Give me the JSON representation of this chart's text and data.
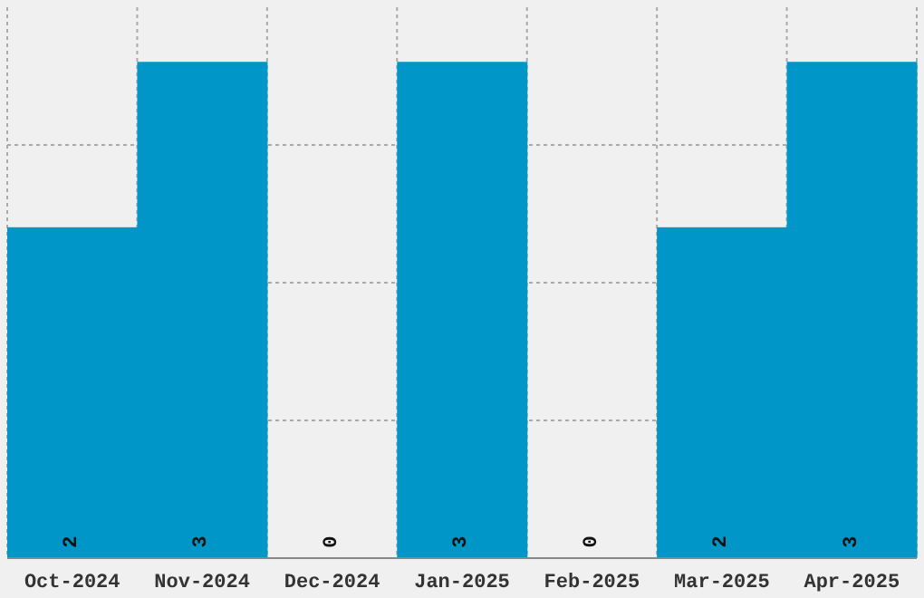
{
  "chart_data": {
    "type": "bar",
    "categories": [
      "Oct-2024",
      "Nov-2024",
      "Dec-2024",
      "Jan-2025",
      "Feb-2025",
      "Mar-2025",
      "Apr-2025"
    ],
    "values": [
      2,
      3,
      0,
      3,
      0,
      2,
      3
    ],
    "color": "#0096c8",
    "data_labels": true,
    "grid": true,
    "tick_labels": "x",
    "ylim": [
      0,
      3.33
    ]
  }
}
